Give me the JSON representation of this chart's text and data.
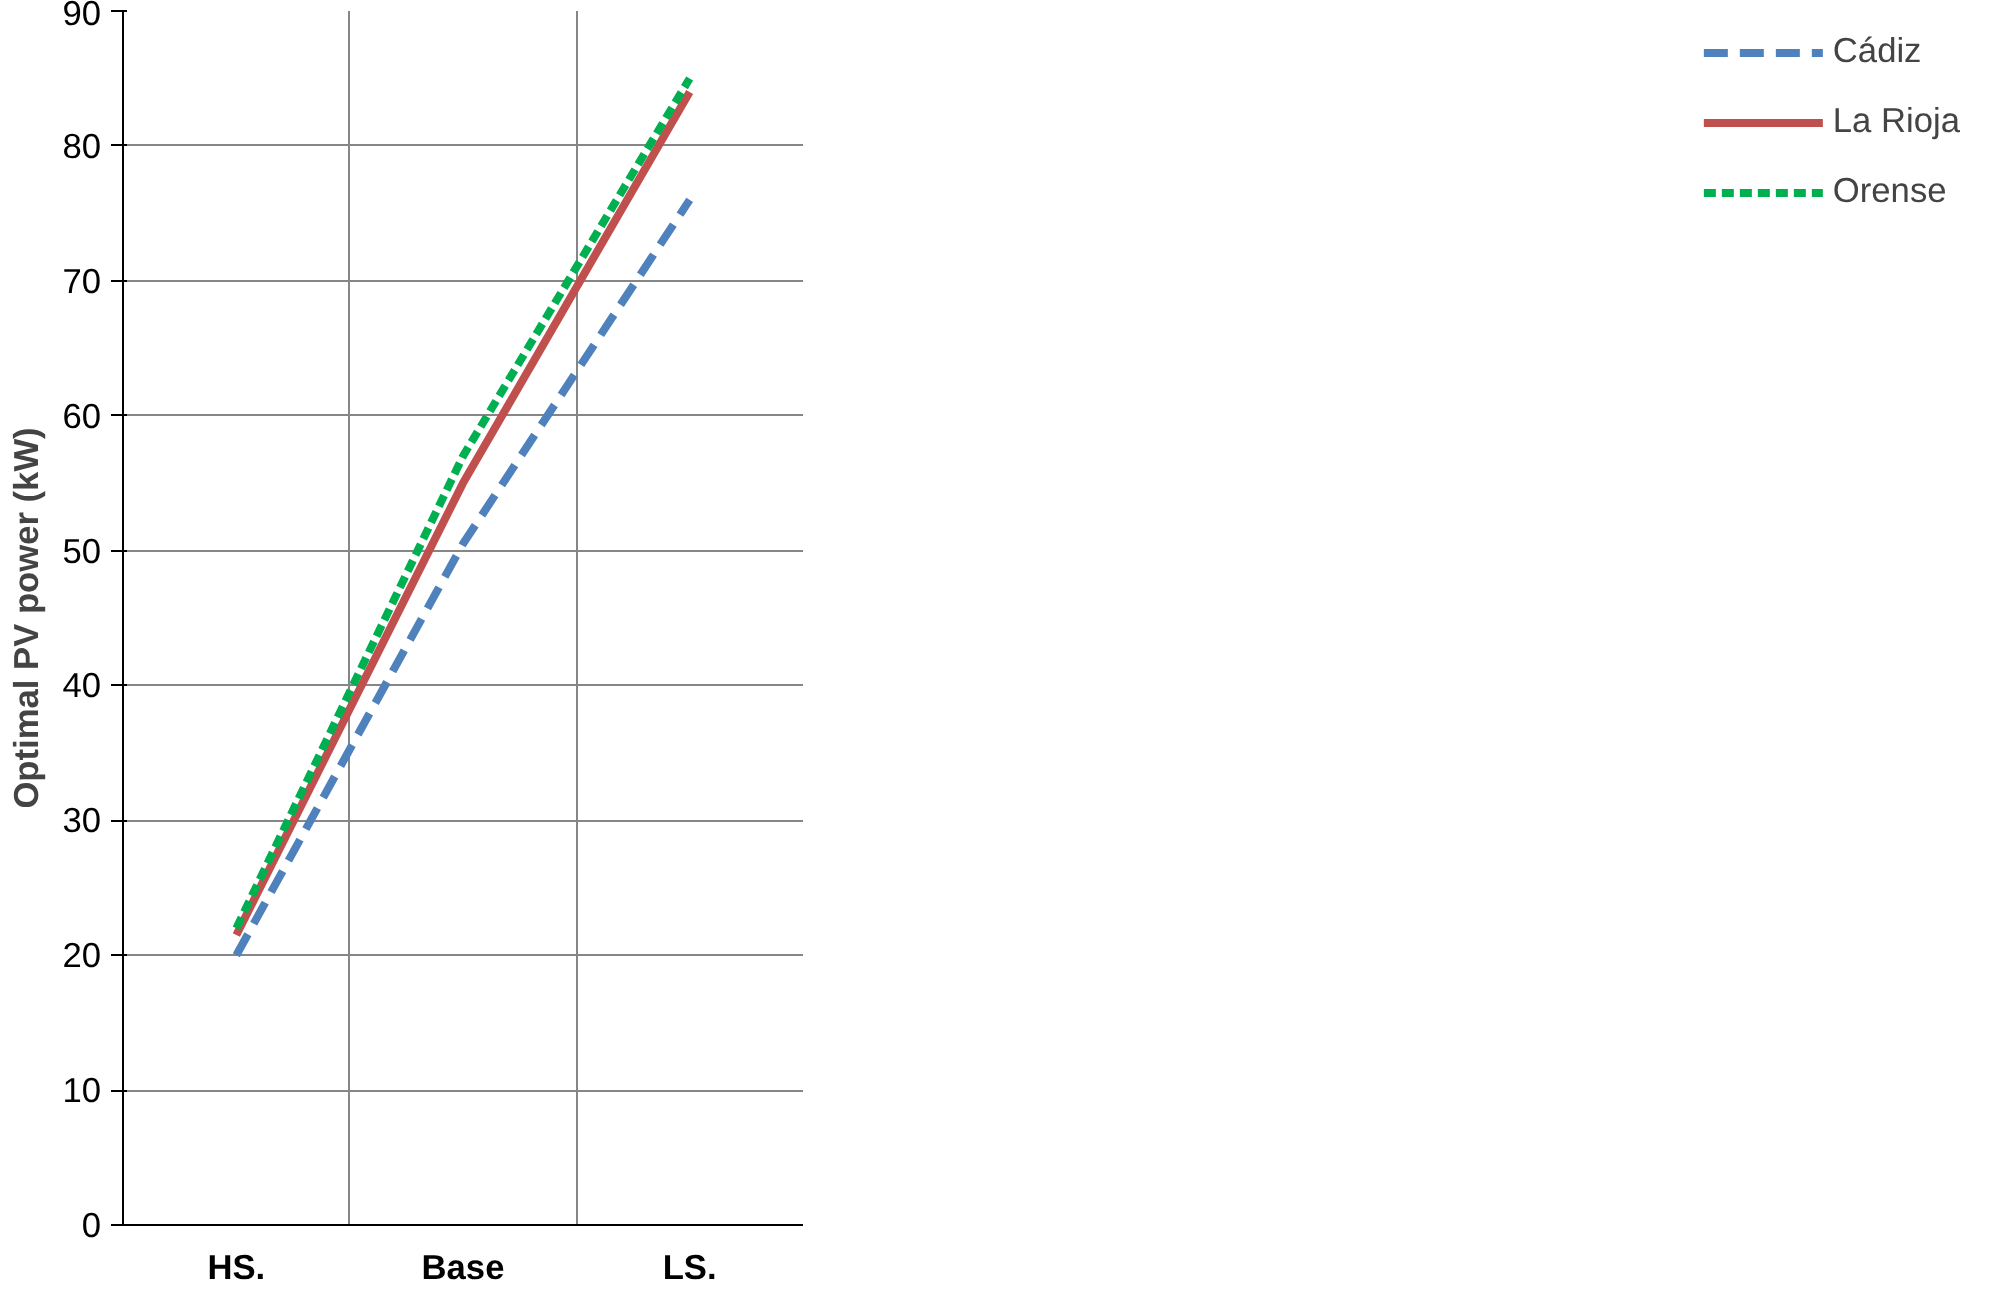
{
  "chart_data": {
    "type": "line",
    "ylabel": "Optimal PV power (kW)",
    "categories": [
      "HS.",
      "Base",
      "LS."
    ],
    "series": [
      {
        "name": "Cádiz",
        "color": "#4f81bd",
        "values": [
          20,
          50.5,
          76
        ],
        "line_style": "dashed"
      },
      {
        "name": "La Rioja",
        "color": "#c0504d",
        "values": [
          21.5,
          55,
          84
        ],
        "line_style": "solid"
      },
      {
        "name": "Orense",
        "color": "#00b050",
        "values": [
          22,
          57,
          85
        ],
        "line_style": "dotted"
      }
    ],
    "ylim": [
      0,
      90
    ],
    "yticks": [
      0,
      10,
      20,
      30,
      40,
      50,
      60,
      70,
      80,
      90
    ],
    "grid": true,
    "legend": "right",
    "marker": "none"
  }
}
